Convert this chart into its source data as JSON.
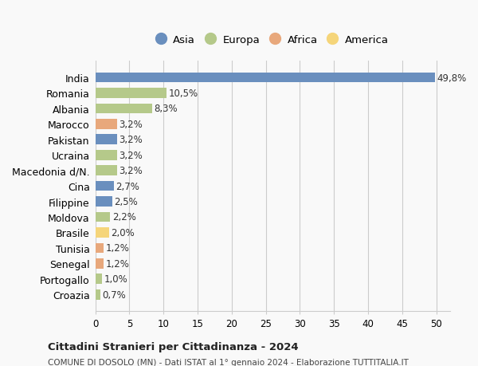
{
  "countries": [
    "India",
    "Romania",
    "Albania",
    "Marocco",
    "Pakistan",
    "Ucraina",
    "Macedonia d/N.",
    "Cina",
    "Filippine",
    "Moldova",
    "Brasile",
    "Tunisia",
    "Senegal",
    "Portogallo",
    "Croazia"
  ],
  "values": [
    49.8,
    10.5,
    8.3,
    3.2,
    3.2,
    3.2,
    3.2,
    2.7,
    2.5,
    2.2,
    2.0,
    1.2,
    1.2,
    1.0,
    0.7
  ],
  "labels": [
    "49,8%",
    "10,5%",
    "8,3%",
    "3,2%",
    "3,2%",
    "3,2%",
    "3,2%",
    "2,7%",
    "2,5%",
    "2,2%",
    "2,0%",
    "1,2%",
    "1,2%",
    "1,0%",
    "0,7%"
  ],
  "continents": [
    "Asia",
    "Europa",
    "Europa",
    "Africa",
    "Asia",
    "Europa",
    "Europa",
    "Asia",
    "Asia",
    "Europa",
    "America",
    "Africa",
    "Africa",
    "Europa",
    "Europa"
  ],
  "colors": {
    "Asia": "#6a8fbe",
    "Europa": "#b5c98a",
    "Africa": "#e8a87c",
    "America": "#f5d57a"
  },
  "legend_order": [
    "Asia",
    "Europa",
    "Africa",
    "America"
  ],
  "title1": "Cittadini Stranieri per Cittadinanza - 2024",
  "title2": "COMUNE DI DOSOLO (MN) - Dati ISTAT al 1° gennaio 2024 - Elaborazione TUTTITALIA.IT",
  "xlim": [
    0,
    52
  ],
  "xticks": [
    0,
    5,
    10,
    15,
    20,
    25,
    30,
    35,
    40,
    45,
    50
  ],
  "background_color": "#f9f9f9",
  "grid_color": "#cccccc"
}
